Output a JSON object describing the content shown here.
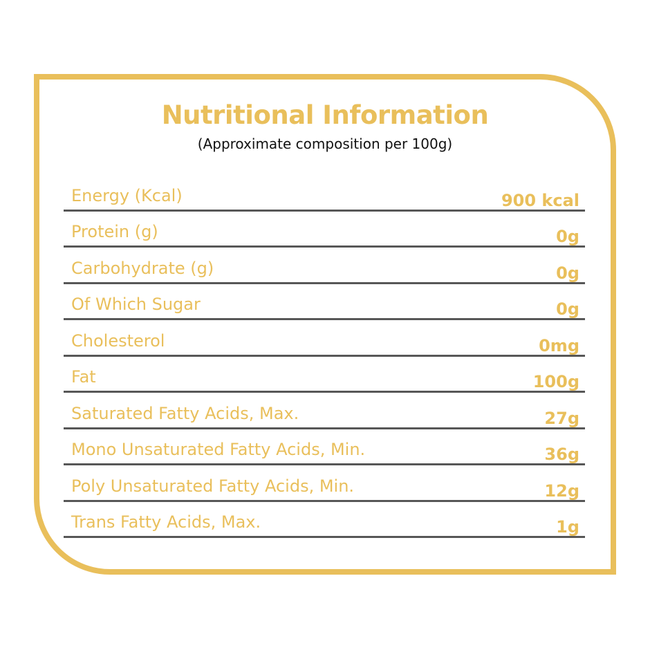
{
  "header": {
    "title": "Nutritional Information",
    "subtitle": "(Approximate composition per 100g)"
  },
  "colors": {
    "accent": "#e9bf5b",
    "rule": "#575757"
  },
  "rows": [
    {
      "label": "Energy (Kcal)",
      "value": "900 kcal"
    },
    {
      "label": "Protein (g)",
      "value": "0g"
    },
    {
      "label": "Carbohydrate (g)",
      "value": "0g"
    },
    {
      "label": "Of Which Sugar",
      "value": "0g"
    },
    {
      "label": "Cholesterol",
      "value": "0mg"
    },
    {
      "label": "Fat",
      "value": "100g"
    },
    {
      "label": "Saturated Fatty Acids, Max.",
      "value": "27g"
    },
    {
      "label": "Mono Unsaturated Fatty Acids, Min.",
      "value": "36g"
    },
    {
      "label": "Poly Unsaturated Fatty Acids, Min.",
      "value": "12g"
    },
    {
      "label": "Trans Fatty Acids, Max.",
      "value": "1g"
    }
  ]
}
